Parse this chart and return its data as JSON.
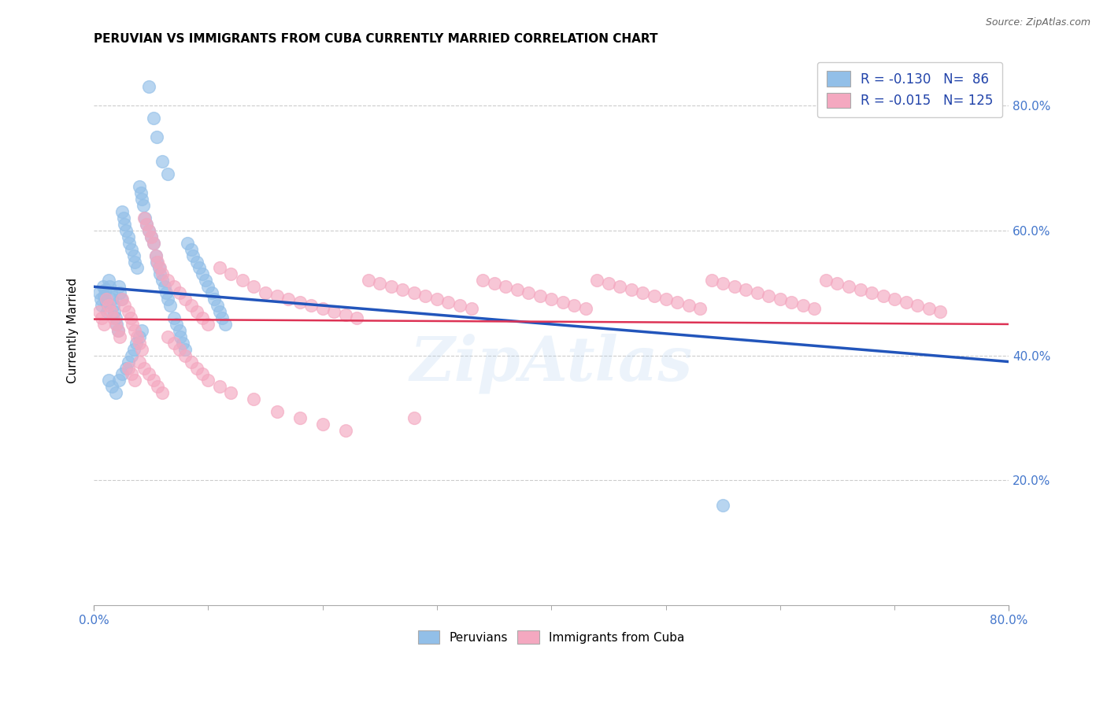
{
  "title": "PERUVIAN VS IMMIGRANTS FROM CUBA CURRENTLY MARRIED CORRELATION CHART",
  "source": "Source: ZipAtlas.com",
  "ylabel": "Currently Married",
  "xlim": [
    0.0,
    0.8
  ],
  "ylim": [
    0.0,
    0.88
  ],
  "xtick_vals": [
    0.0,
    0.8
  ],
  "xtick_labels": [
    "0.0%",
    "80.0%"
  ],
  "ytick_vals_right": [
    0.2,
    0.4,
    0.6,
    0.8
  ],
  "ytick_labels_right": [
    "20.0%",
    "40.0%",
    "60.0%",
    "80.0%"
  ],
  "blue_color": "#92bfe8",
  "pink_color": "#f4a8c0",
  "line_blue": "#2255bb",
  "line_pink": "#dd3355",
  "watermark": "ZipAtlas",
  "blue_line_x": [
    0.0,
    0.8
  ],
  "blue_line_y": [
    0.51,
    0.39
  ],
  "pink_line_x": [
    0.0,
    0.8
  ],
  "pink_line_y": [
    0.458,
    0.45
  ],
  "blue_scatter_x": [
    0.005,
    0.006,
    0.007,
    0.008,
    0.009,
    0.01,
    0.011,
    0.012,
    0.013,
    0.014,
    0.015,
    0.016,
    0.017,
    0.018,
    0.019,
    0.02,
    0.021,
    0.022,
    0.023,
    0.024,
    0.025,
    0.026,
    0.027,
    0.028,
    0.03,
    0.031,
    0.033,
    0.035,
    0.036,
    0.038,
    0.04,
    0.041,
    0.042,
    0.043,
    0.045,
    0.046,
    0.048,
    0.05,
    0.052,
    0.054,
    0.055,
    0.057,
    0.058,
    0.06,
    0.062,
    0.063,
    0.065,
    0.067,
    0.07,
    0.072,
    0.075,
    0.076,
    0.078,
    0.08,
    0.082,
    0.085,
    0.087,
    0.09,
    0.092,
    0.095,
    0.098,
    0.1,
    0.103,
    0.105,
    0.108,
    0.11,
    0.112,
    0.115,
    0.048,
    0.052,
    0.055,
    0.06,
    0.065,
    0.013,
    0.016,
    0.019,
    0.022,
    0.025,
    0.028,
    0.03,
    0.033,
    0.035,
    0.037,
    0.04,
    0.042,
    0.55
  ],
  "blue_scatter_y": [
    0.5,
    0.49,
    0.48,
    0.51,
    0.495,
    0.505,
    0.485,
    0.47,
    0.52,
    0.51,
    0.5,
    0.49,
    0.48,
    0.47,
    0.46,
    0.45,
    0.44,
    0.51,
    0.5,
    0.49,
    0.63,
    0.62,
    0.61,
    0.6,
    0.59,
    0.58,
    0.57,
    0.56,
    0.55,
    0.54,
    0.67,
    0.66,
    0.65,
    0.64,
    0.62,
    0.61,
    0.6,
    0.59,
    0.58,
    0.56,
    0.55,
    0.54,
    0.53,
    0.52,
    0.51,
    0.5,
    0.49,
    0.48,
    0.46,
    0.45,
    0.44,
    0.43,
    0.42,
    0.41,
    0.58,
    0.57,
    0.56,
    0.55,
    0.54,
    0.53,
    0.52,
    0.51,
    0.5,
    0.49,
    0.48,
    0.47,
    0.46,
    0.45,
    0.83,
    0.78,
    0.75,
    0.71,
    0.69,
    0.36,
    0.35,
    0.34,
    0.36,
    0.37,
    0.38,
    0.39,
    0.4,
    0.41,
    0.42,
    0.43,
    0.44,
    0.16
  ],
  "pink_scatter_x": [
    0.005,
    0.007,
    0.009,
    0.011,
    0.013,
    0.015,
    0.017,
    0.019,
    0.021,
    0.023,
    0.025,
    0.027,
    0.03,
    0.032,
    0.034,
    0.036,
    0.038,
    0.04,
    0.042,
    0.044,
    0.046,
    0.048,
    0.05,
    0.052,
    0.054,
    0.056,
    0.058,
    0.06,
    0.065,
    0.07,
    0.075,
    0.08,
    0.085,
    0.09,
    0.095,
    0.1,
    0.11,
    0.12,
    0.13,
    0.14,
    0.15,
    0.16,
    0.17,
    0.18,
    0.19,
    0.2,
    0.21,
    0.22,
    0.23,
    0.24,
    0.25,
    0.26,
    0.27,
    0.28,
    0.29,
    0.3,
    0.31,
    0.32,
    0.33,
    0.34,
    0.35,
    0.36,
    0.37,
    0.38,
    0.39,
    0.4,
    0.41,
    0.42,
    0.43,
    0.44,
    0.45,
    0.46,
    0.47,
    0.48,
    0.49,
    0.5,
    0.51,
    0.52,
    0.53,
    0.54,
    0.55,
    0.56,
    0.57,
    0.58,
    0.59,
    0.6,
    0.61,
    0.62,
    0.63,
    0.64,
    0.65,
    0.66,
    0.67,
    0.68,
    0.69,
    0.7,
    0.71,
    0.72,
    0.73,
    0.74,
    0.03,
    0.033,
    0.036,
    0.04,
    0.044,
    0.048,
    0.052,
    0.056,
    0.06,
    0.065,
    0.07,
    0.075,
    0.08,
    0.085,
    0.09,
    0.095,
    0.1,
    0.11,
    0.12,
    0.14,
    0.16,
    0.18,
    0.2,
    0.22,
    0.28
  ],
  "pink_scatter_y": [
    0.47,
    0.46,
    0.45,
    0.49,
    0.48,
    0.47,
    0.46,
    0.45,
    0.44,
    0.43,
    0.49,
    0.48,
    0.47,
    0.46,
    0.45,
    0.44,
    0.43,
    0.42,
    0.41,
    0.62,
    0.61,
    0.6,
    0.59,
    0.58,
    0.56,
    0.55,
    0.54,
    0.53,
    0.52,
    0.51,
    0.5,
    0.49,
    0.48,
    0.47,
    0.46,
    0.45,
    0.54,
    0.53,
    0.52,
    0.51,
    0.5,
    0.495,
    0.49,
    0.485,
    0.48,
    0.475,
    0.47,
    0.465,
    0.46,
    0.52,
    0.515,
    0.51,
    0.505,
    0.5,
    0.495,
    0.49,
    0.485,
    0.48,
    0.475,
    0.52,
    0.515,
    0.51,
    0.505,
    0.5,
    0.495,
    0.49,
    0.485,
    0.48,
    0.475,
    0.52,
    0.515,
    0.51,
    0.505,
    0.5,
    0.495,
    0.49,
    0.485,
    0.48,
    0.475,
    0.52,
    0.515,
    0.51,
    0.505,
    0.5,
    0.495,
    0.49,
    0.485,
    0.48,
    0.475,
    0.52,
    0.515,
    0.51,
    0.505,
    0.5,
    0.495,
    0.49,
    0.485,
    0.48,
    0.475,
    0.47,
    0.38,
    0.37,
    0.36,
    0.39,
    0.38,
    0.37,
    0.36,
    0.35,
    0.34,
    0.43,
    0.42,
    0.41,
    0.4,
    0.39,
    0.38,
    0.37,
    0.36,
    0.35,
    0.34,
    0.33,
    0.31,
    0.3,
    0.29,
    0.28,
    0.3
  ]
}
